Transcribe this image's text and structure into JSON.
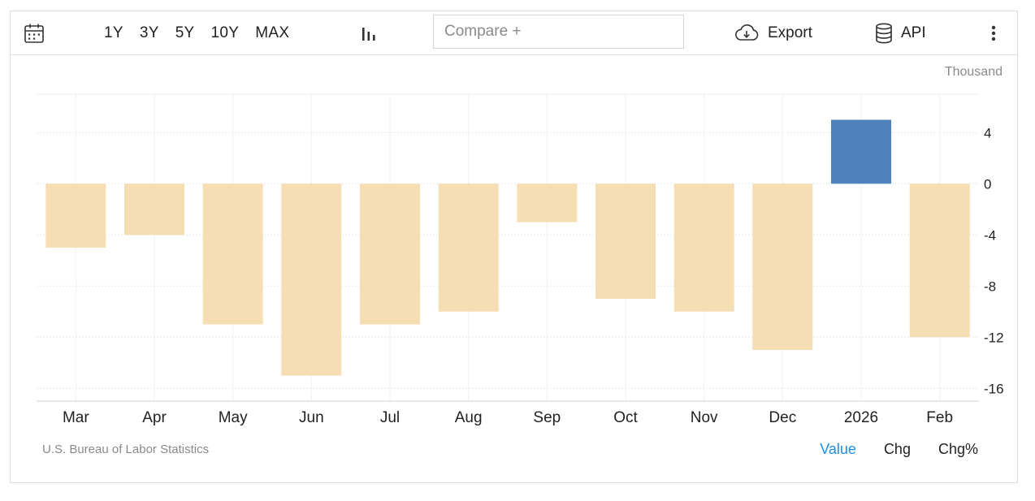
{
  "toolbar": {
    "ranges": [
      "1Y",
      "3Y",
      "5Y",
      "10Y",
      "MAX"
    ],
    "compare_placeholder": "Compare +",
    "export_label": "Export",
    "api_label": "API"
  },
  "footer": {
    "source": "U.S. Bureau of Labor Statistics",
    "modes": [
      "Value",
      "Chg",
      "Chg%"
    ],
    "active_mode": "Value"
  },
  "colors": {
    "negative": "#f5deb3",
    "highlight": "#4f81bd",
    "active_mode": "#1e8ee6"
  },
  "chart_data": {
    "type": "bar",
    "unit": "Thousand",
    "categories": [
      "Mar",
      "Apr",
      "May",
      "Jun",
      "Jul",
      "Aug",
      "Sep",
      "Oct",
      "Nov",
      "Dec",
      "2026",
      "Feb"
    ],
    "values": [
      -5,
      -4,
      -11,
      -15,
      -11,
      -10,
      -3,
      -9,
      -10,
      -13,
      5,
      -12
    ],
    "ylim": [
      -17,
      7
    ],
    "yticks": [
      4,
      0,
      -4,
      -8,
      -12,
      -16
    ],
    "highlight_category": "2026",
    "grid": true,
    "title": "",
    "xlabel": "",
    "ylabel": ""
  }
}
